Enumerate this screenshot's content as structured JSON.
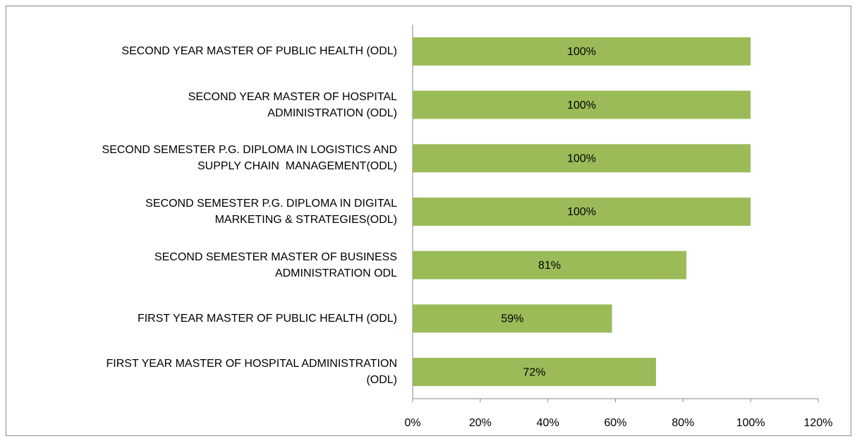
{
  "chart_data": {
    "type": "barh",
    "categories": [
      "SECOND YEAR MASTER OF PUBLIC HEALTH (ODL)",
      "SECOND YEAR MASTER OF HOSPITAL\nADMINISTRATION (ODL)",
      "SECOND SEMESTER P.G. DIPLOMA IN LOGISTICS AND\nSUPPLY CHAIN  MANAGEMENT(ODL)",
      "SECOND SEMESTER P.G. DIPLOMA IN DIGITAL\nMARKETING & STRATEGIES(ODL)",
      "SECOND SEMESTER MASTER OF BUSINESS\nADMINISTRATION ODL",
      "FIRST YEAR MASTER OF PUBLIC HEALTH (ODL)",
      "FIRST YEAR MASTER OF HOSPITAL ADMINISTRATION\n(ODL)"
    ],
    "values": [
      100,
      100,
      100,
      100,
      81,
      59,
      72
    ],
    "value_labels": [
      "100%",
      "100%",
      "100%",
      "100%",
      "81%",
      "59%",
      "72%"
    ],
    "color": "#9bbb59",
    "xlim": [
      0,
      120
    ],
    "xticks": [
      {
        "value": 0,
        "label": "0%"
      },
      {
        "value": 20,
        "label": "20%"
      },
      {
        "value": 40,
        "label": "40%"
      },
      {
        "value": 60,
        "label": "60%"
      },
      {
        "value": 80,
        "label": "80%"
      },
      {
        "value": 100,
        "label": "100%"
      },
      {
        "value": 120,
        "label": "120%"
      }
    ],
    "grid": false
  }
}
